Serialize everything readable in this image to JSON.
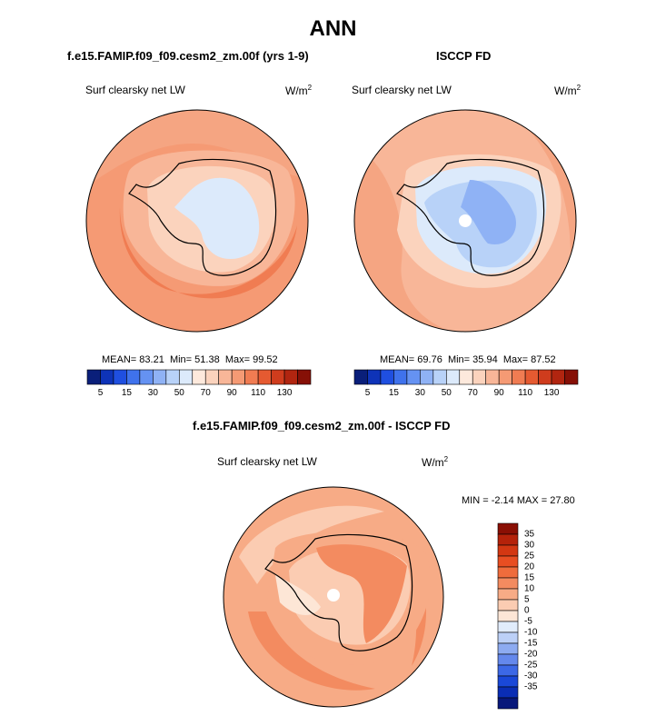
{
  "title": "ANN",
  "panels": [
    {
      "case": "f.e15.FAMIP.f09_f09.cesm2_zm.00f (yrs 1-9)",
      "variable": "Surf clearsky net LW",
      "units_base": "W/m",
      "units_exp": "2",
      "stats": {
        "mean_label": "MEAN=",
        "mean": "83.21",
        "min_label": "Min=",
        "min": "51.38",
        "max_label": "Max=",
        "max": "99.52"
      }
    },
    {
      "case": "ISCCP FD",
      "variable": "Surf clearsky net LW",
      "units_base": "W/m",
      "units_exp": "2",
      "stats": {
        "mean_label": "MEAN=",
        "mean": "69.76",
        "min_label": "Min=",
        "min": "35.94",
        "max_label": "Max=",
        "max": "87.52"
      }
    },
    {
      "case": "f.e15.FAMIP.f09_f09.cesm2_zm.00f - ISCCP FD",
      "variable": "Surf clearsky net LW",
      "units_base": "W/m",
      "units_exp": "2",
      "stats_text": "MIN =  -2.14 MAX =  27.80"
    }
  ],
  "colorbar_main": {
    "colors": [
      "#0a1f7a",
      "#0e33b8",
      "#1f4fe0",
      "#3f72ec",
      "#6592f2",
      "#8fb2f5",
      "#b8d2f8",
      "#dceafb",
      "#fde9dc",
      "#fbd3bd",
      "#f8b698",
      "#f59a74",
      "#f07c52",
      "#e55a31",
      "#cf3c1d",
      "#b12510",
      "#861006"
    ],
    "labels": [
      "5",
      "15",
      "30",
      "50",
      "70",
      "90",
      "110",
      "130"
    ]
  },
  "colorbar_diff": {
    "colors": [
      "#08187a",
      "#0a2db5",
      "#1a48d8",
      "#3c68e6",
      "#6488ec",
      "#8dabf1",
      "#bcd0f7",
      "#e1ecfb",
      "#fde6d6",
      "#fbccb2",
      "#f7ab86",
      "#f38b60",
      "#ef6c3c",
      "#e84e22",
      "#d33712",
      "#b5220a",
      "#8a0f04"
    ],
    "labels": [
      "35",
      "30",
      "25",
      "20",
      "15",
      "10",
      "5",
      "0",
      "-5",
      "-10",
      "-15",
      "-20",
      "-25",
      "-30",
      "-35"
    ]
  },
  "chart_data": [
    {
      "type": "heatmap",
      "projection": "south-polar-stereographic",
      "title": "f.e15.FAMIP.f09_f09.cesm2_zm.00f (yrs 1-9)",
      "variable": "Surf clearsky net LW",
      "units": "W/m2",
      "mean": 83.21,
      "min": 51.38,
      "max": 99.52,
      "contour_levels": [
        5,
        10,
        15,
        20,
        25,
        30,
        40,
        50,
        60,
        70,
        80,
        90,
        100,
        110,
        120,
        130
      ]
    },
    {
      "type": "heatmap",
      "projection": "south-polar-stereographic",
      "title": "ISCCP FD",
      "variable": "Surf clearsky net LW",
      "units": "W/m2",
      "mean": 69.76,
      "min": 35.94,
      "max": 87.52,
      "contour_levels": [
        5,
        10,
        15,
        20,
        25,
        30,
        40,
        50,
        60,
        70,
        80,
        90,
        100,
        110,
        120,
        130
      ]
    },
    {
      "type": "heatmap",
      "projection": "south-polar-stereographic",
      "title": "f.e15.FAMIP.f09_f09.cesm2_zm.00f - ISCCP FD",
      "variable": "Surf clearsky net LW",
      "units": "W/m2",
      "min": -2.14,
      "max": 27.8,
      "contour_levels": [
        -35,
        -30,
        -25,
        -20,
        -15,
        -10,
        -5,
        0,
        5,
        10,
        15,
        20,
        25,
        30,
        35
      ]
    }
  ]
}
